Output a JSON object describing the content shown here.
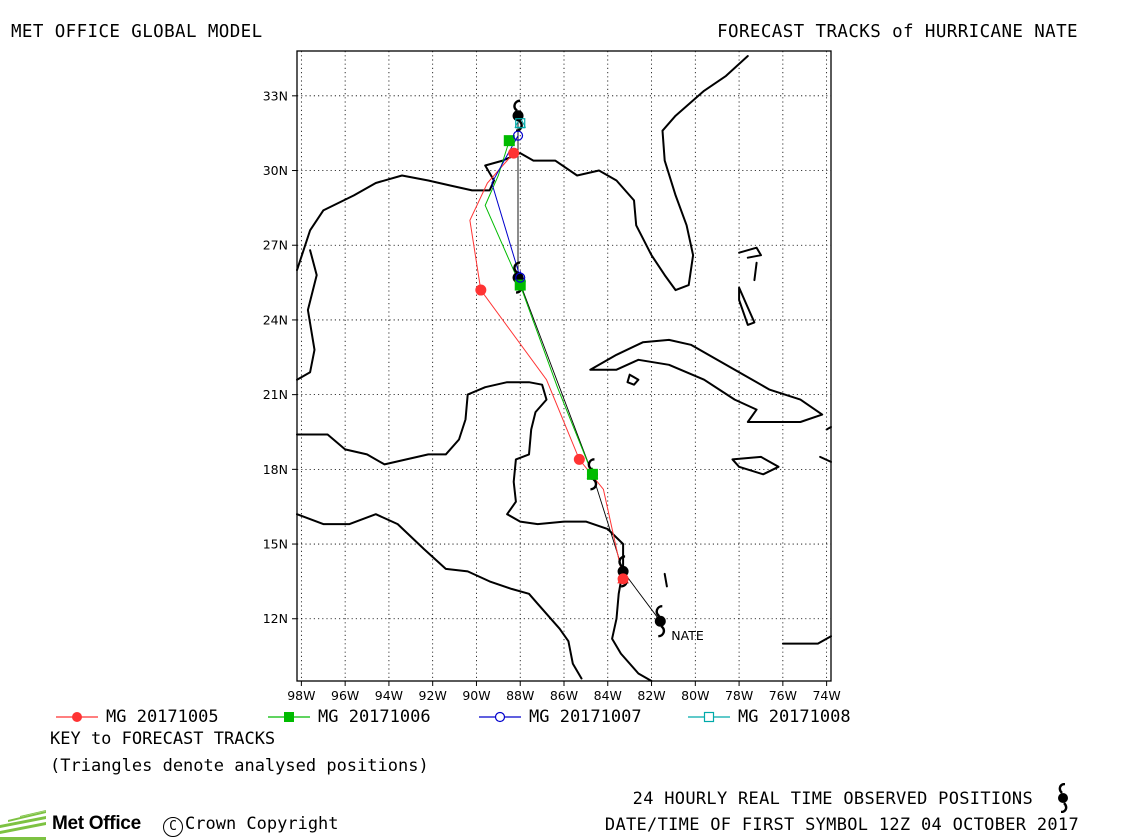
{
  "header": {
    "left_title": "MET OFFICE GLOBAL MODEL",
    "right_title": "FORECAST TRACKS of HURRICANE NATE"
  },
  "map": {
    "lon_ticks": [
      "98W",
      "96W",
      "94W",
      "92W",
      "90W",
      "88W",
      "86W",
      "84W",
      "82W",
      "80W",
      "78W",
      "76W",
      "74W"
    ],
    "lat_ticks": [
      "12N",
      "15N",
      "18N",
      "21N",
      "24N",
      "27N",
      "30N",
      "33N"
    ],
    "storm_label": "NATE",
    "land_color": "#000000",
    "grid": "dotted"
  },
  "chart_data": {
    "type": "scatter",
    "title": "FORECAST TRACKS of HURRICANE NATE",
    "xlabel": "",
    "ylabel": "",
    "xlim": [
      -98.2,
      -73.8
    ],
    "ylim": [
      9.5,
      34.8
    ],
    "observed_track": [
      [
        -81.6,
        11.9
      ],
      [
        -83.3,
        13.9
      ],
      [
        -84.7,
        17.8
      ],
      [
        -88.1,
        25.7
      ],
      [
        -88.1,
        32.2
      ]
    ],
    "series": [
      {
        "name": "MG 20171005",
        "color": "#ff3333",
        "marker": "circle-filled",
        "points": [
          [
            -83.3,
            13.6
          ],
          [
            -85.3,
            18.4
          ],
          [
            -89.8,
            25.2
          ],
          [
            -88.3,
            30.7
          ]
        ],
        "path": [
          [
            -83.3,
            13.6
          ],
          [
            -84.2,
            17.2
          ],
          [
            -85.3,
            18.4
          ],
          [
            -86.8,
            21.6
          ],
          [
            -89.8,
            25.2
          ],
          [
            -90.3,
            28.0
          ],
          [
            -89.5,
            29.5
          ],
          [
            -88.3,
            30.7
          ]
        ]
      },
      {
        "name": "MG 20171006",
        "color": "#00bb00",
        "marker": "square-filled",
        "points": [
          [
            -84.7,
            17.8
          ],
          [
            -88.0,
            25.4
          ],
          [
            -88.5,
            31.2
          ]
        ],
        "path": [
          [
            -84.7,
            17.8
          ],
          [
            -86.3,
            21.3
          ],
          [
            -88.0,
            25.4
          ],
          [
            -89.6,
            28.6
          ],
          [
            -89.0,
            29.8
          ],
          [
            -88.5,
            31.2
          ]
        ]
      },
      {
        "name": "MG 20171007",
        "color": "#0000cc",
        "marker": "circle-open",
        "points": [
          [
            -88.0,
            25.7
          ],
          [
            -88.1,
            31.4
          ]
        ],
        "path": [
          [
            -88.0,
            25.7
          ],
          [
            -89.3,
            29.5
          ],
          [
            -88.1,
            31.4
          ]
        ]
      },
      {
        "name": "MG 20171008",
        "color": "#00aaaa",
        "marker": "square-open",
        "points": [
          [
            -88.0,
            31.9
          ]
        ],
        "path": [
          [
            -88.0,
            31.9
          ]
        ]
      }
    ]
  },
  "legend": [
    {
      "label": "MG 20171005",
      "color": "#ff3333",
      "marker": "circle-filled"
    },
    {
      "label": "MG 20171006",
      "color": "#00bb00",
      "marker": "square-filled"
    },
    {
      "label": "MG 20171007",
      "color": "#0000cc",
      "marker": "circle-open"
    },
    {
      "label": "MG 20171008",
      "color": "#00aaaa",
      "marker": "square-open"
    }
  ],
  "key": {
    "title": "KEY to FORECAST TRACKS",
    "note": "(Triangles denote analysed positions)"
  },
  "footer": {
    "observed_label": "24 HOURLY REAL TIME OBSERVED POSITIONS",
    "date_label": "DATE/TIME OF FIRST SYMBOL 12Z 04 OCTOBER 2017",
    "brand": "Met Office",
    "copyright": "Crown Copyright",
    "copyright_symbol": "C"
  }
}
